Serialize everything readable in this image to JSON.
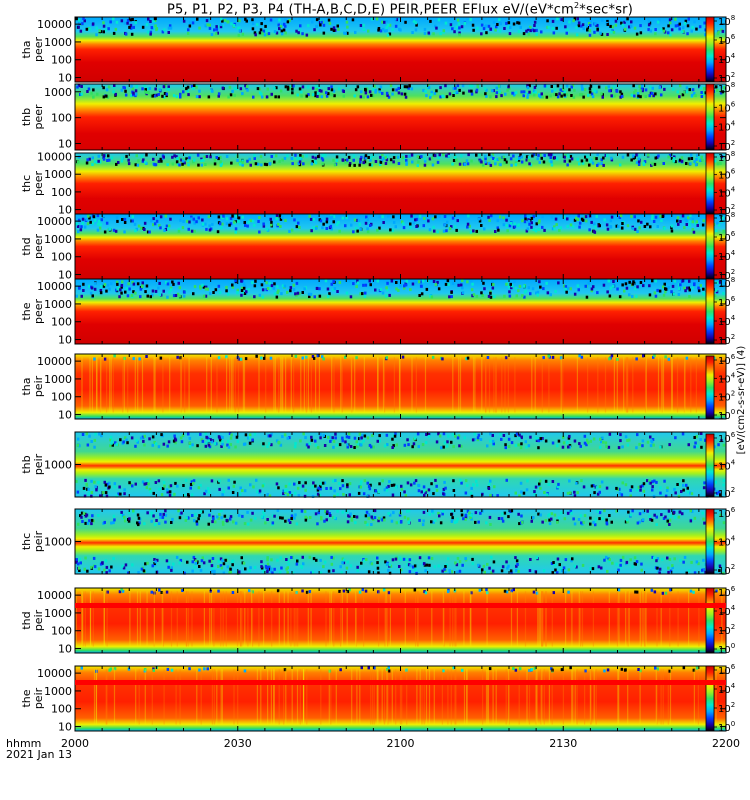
{
  "title": {
    "main": "P5, P1, P2, P3, P4 (TH-A,B,C,D,E) PEIR,PEER EFlux eV/(eV*cm",
    "sup": "2",
    "tail": "*sec*sr)"
  },
  "xaxis": {
    "label_line1": "hhmm",
    "label_line2": "2021 Jan 13",
    "ticks": [
      "2000",
      "2030",
      "2100",
      "2130",
      "2200"
    ],
    "tick_values_min": [
      0,
      30,
      60,
      90,
      120
    ],
    "range_min": [
      0,
      120
    ]
  },
  "colorbar": {
    "label": "[eV/(cm2-s-sr-eV)] (4)",
    "exponents": [
      "0",
      "2",
      "4",
      "6",
      "8"
    ],
    "colors": [
      "#000000",
      "#1a00a8",
      "#0040ff",
      "#00a8ff",
      "#00e8d0",
      "#30e060",
      "#a0f020",
      "#f0f000",
      "#ff8000",
      "#ff2000",
      "#c80000"
    ]
  },
  "chart_data": {
    "type": "heatmap",
    "title": "P5, P1, P2, P3, P4 (TH-A,B,C,D,E) PEIR,PEER EFlux eV/(eV*cm^2*sec*sr)",
    "xlabel": "hhmm 2021 Jan 13",
    "x_ticks": [
      "2000",
      "2030",
      "2100",
      "2130",
      "2200"
    ],
    "zlabel": "[eV/(cm2-s-sr-eV)]",
    "zscale": "log",
    "panels": [
      {
        "name": "tha peer",
        "ylabel": [
          "tha",
          "peer"
        ],
        "yticks": [
          "10",
          "100",
          "1000",
          "10000"
        ],
        "ylog_range": [
          0.75,
          4.4
        ],
        "colorbar_exponents": [
          "2",
          "4",
          "6",
          "8"
        ]
      },
      {
        "name": "thb peer",
        "ylabel": [
          "thb",
          "peer"
        ],
        "yticks": [
          "10",
          "100",
          "1000"
        ],
        "ylog_range": [
          0.75,
          3.3
        ],
        "colorbar_exponents": [
          "2",
          "4",
          "6",
          "8"
        ]
      },
      {
        "name": "thc peer",
        "ylabel": [
          "thc",
          "peer"
        ],
        "yticks": [
          "10",
          "100",
          "1000",
          "10000"
        ],
        "ylog_range": [
          0.75,
          4.2
        ],
        "colorbar_exponents": [
          "2",
          "4",
          "6",
          "8"
        ]
      },
      {
        "name": "thd peer",
        "ylabel": [
          "thd",
          "peer"
        ],
        "yticks": [
          "10",
          "100",
          "1000",
          "10000"
        ],
        "ylog_range": [
          0.75,
          4.4
        ],
        "colorbar_exponents": [
          "2",
          "4",
          "6",
          "8"
        ]
      },
      {
        "name": "the peer",
        "ylabel": [
          "the",
          "peer"
        ],
        "yticks": [
          "10",
          "100",
          "1000",
          "10000"
        ],
        "ylog_range": [
          0.75,
          4.4
        ],
        "colorbar_exponents": [
          "2",
          "4",
          "6",
          "8"
        ]
      },
      {
        "name": "tha peir",
        "ylabel": [
          "tha",
          "peir"
        ],
        "yticks": [
          "10",
          "100",
          "1000",
          "10000"
        ],
        "ylog_range": [
          0.75,
          4.4
        ],
        "colorbar_exponents": [
          "0",
          "2",
          "4",
          "6"
        ]
      },
      {
        "name": "thb peir",
        "ylabel": [
          "thb",
          "peir"
        ],
        "yticks": [
          "1000"
        ],
        "ylog_range": [
          2.2,
          3.8
        ],
        "colorbar_exponents": [
          "2",
          "4",
          "6"
        ]
      },
      {
        "name": "thc peir",
        "ylabel": [
          "thc",
          "peir"
        ],
        "yticks": [
          "1000"
        ],
        "ylog_range": [
          2.2,
          3.8
        ],
        "colorbar_exponents": [
          "2",
          "4",
          "6"
        ]
      },
      {
        "name": "thd peir",
        "ylabel": [
          "thd",
          "peir"
        ],
        "yticks": [
          "10",
          "100",
          "1000",
          "10000"
        ],
        "ylog_range": [
          0.75,
          4.4
        ],
        "colorbar_exponents": [
          "0",
          "2",
          "4",
          "6"
        ]
      },
      {
        "name": "the peir",
        "ylabel": [
          "the",
          "peir"
        ],
        "yticks": [
          "10",
          "100",
          "1000",
          "10000"
        ],
        "ylog_range": [
          0.75,
          4.4
        ],
        "colorbar_exponents": [
          "0",
          "2",
          "4",
          "6"
        ]
      }
    ]
  }
}
